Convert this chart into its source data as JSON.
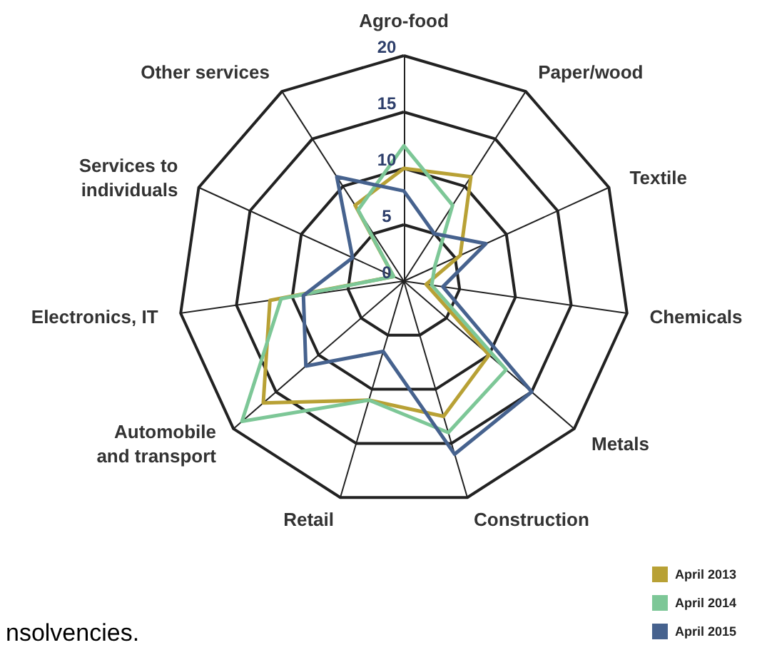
{
  "chart_data": {
    "type": "radar",
    "categories": [
      "Agro-food",
      "Paper/wood",
      "Textile",
      "Chemicals",
      "Metals",
      "Construction",
      "Retail",
      "Automobile\nand transport",
      "Electronics, IT",
      "Services to\nindividuals",
      "Other services"
    ],
    "series": [
      {
        "name": "April 2013",
        "color": "#b8a135",
        "values": [
          10,
          11,
          5.5,
          2,
          10,
          12.5,
          11,
          16.5,
          12,
          1,
          8
        ]
      },
      {
        "name": "April 2014",
        "color": "#7dc797",
        "values": [
          12,
          8,
          3,
          2.5,
          12,
          14,
          11,
          19,
          11,
          1,
          7.5
        ]
      },
      {
        "name": "April 2015",
        "color": "#46628e",
        "values": [
          8,
          5,
          8,
          3.5,
          15,
          16,
          6.5,
          11.5,
          9,
          5,
          11
        ]
      }
    ],
    "ylim": [
      0,
      20
    ],
    "yticks": [
      0,
      5,
      10,
      15,
      20
    ],
    "legend": "bottom right",
    "annotations": [
      "nsolvencies."
    ]
  }
}
